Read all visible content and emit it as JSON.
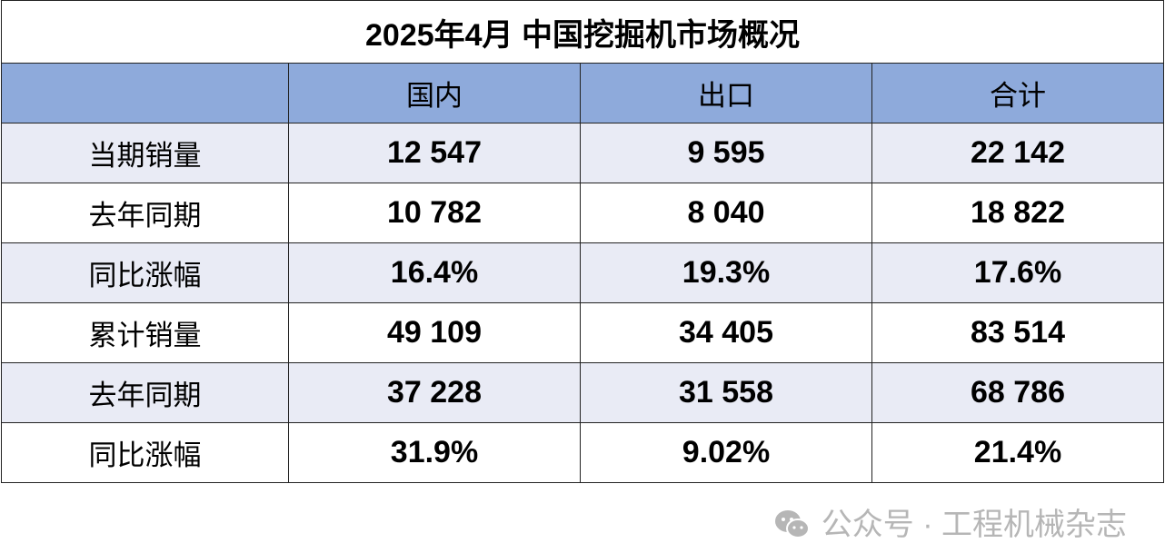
{
  "title": "2025年4月 中国挖掘机市场概况",
  "columns": [
    "",
    "国内",
    "出口",
    "合计"
  ],
  "rows": [
    {
      "label": "当期销量",
      "values": [
        "12 547",
        "9 595",
        "22 142"
      ]
    },
    {
      "label": "去年同期",
      "values": [
        "10 782",
        "8 040",
        "18 822"
      ]
    },
    {
      "label": "同比涨幅",
      "values": [
        "16.4%",
        "19.3%",
        "17.6%"
      ]
    },
    {
      "label": "累计销量",
      "values": [
        "49 109",
        "34 405",
        "83 514"
      ]
    },
    {
      "label": "去年同期",
      "values": [
        "37 228",
        "31 558",
        "68 786"
      ]
    },
    {
      "label": "同比涨幅",
      "values": [
        "31.9%",
        "9.02%",
        "21.4%"
      ]
    }
  ],
  "watermark": "公众号 · 工程机械杂志",
  "colors": {
    "header": "#8eaadb",
    "alt_row": "#e9ebf5",
    "border": "#222222"
  }
}
